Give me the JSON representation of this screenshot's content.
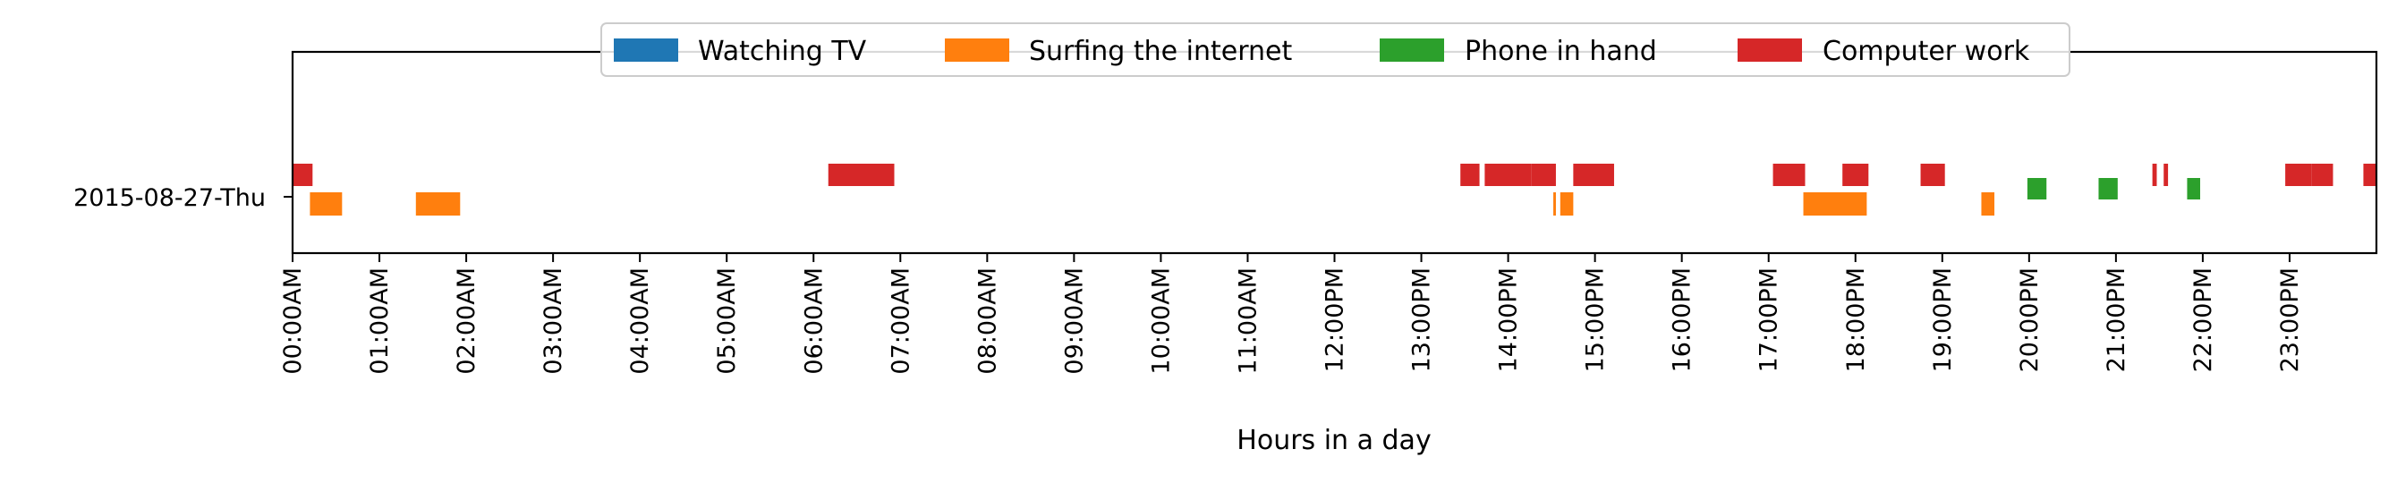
{
  "chart_data": {
    "type": "timeline",
    "title": "",
    "xlabel": "Hours in a day",
    "ylabel": "",
    "xlim": [
      0,
      24
    ],
    "row_label": "2015-08-27-Thu",
    "x_tick_labels": [
      "00:00AM",
      "01:00AM",
      "02:00AM",
      "03:00AM",
      "04:00AM",
      "05:00AM",
      "06:00AM",
      "07:00AM",
      "08:00AM",
      "09:00AM",
      "10:00AM",
      "11:00AM",
      "12:00PM",
      "13:00PM",
      "14:00PM",
      "15:00PM",
      "16:00PM",
      "17:00PM",
      "18:00PM",
      "19:00PM",
      "20:00PM",
      "21:00PM",
      "22:00PM",
      "23:00PM"
    ],
    "legend_position": "top-center",
    "grid": false,
    "series": [
      {
        "name": "Watching TV",
        "color": "#1f77b4",
        "intervals": []
      },
      {
        "name": "Surfing the internet",
        "color": "#ff7f0e",
        "intervals": [
          [
            0.2,
            0.57
          ],
          [
            1.42,
            1.93
          ],
          [
            14.52,
            14.55
          ],
          [
            14.6,
            14.75
          ],
          [
            17.4,
            18.13
          ],
          [
            19.45,
            19.6
          ]
        ]
      },
      {
        "name": "Phone in hand",
        "color": "#2ca02c",
        "intervals": [
          [
            19.98,
            20.2
          ],
          [
            20.8,
            21.02
          ],
          [
            21.82,
            21.97
          ]
        ]
      },
      {
        "name": "Computer work",
        "color": "#d62728",
        "intervals": [
          [
            0.0,
            0.23
          ],
          [
            6.17,
            6.93
          ],
          [
            13.45,
            13.67
          ],
          [
            13.73,
            14.27
          ],
          [
            14.27,
            14.55
          ],
          [
            14.75,
            15.22
          ],
          [
            17.05,
            17.42
          ],
          [
            17.85,
            18.15
          ],
          [
            18.75,
            19.03
          ],
          [
            21.42,
            21.47
          ],
          [
            21.55,
            21.6
          ],
          [
            22.95,
            23.25
          ],
          [
            23.25,
            23.5
          ],
          [
            23.85,
            24.0
          ]
        ]
      }
    ]
  }
}
